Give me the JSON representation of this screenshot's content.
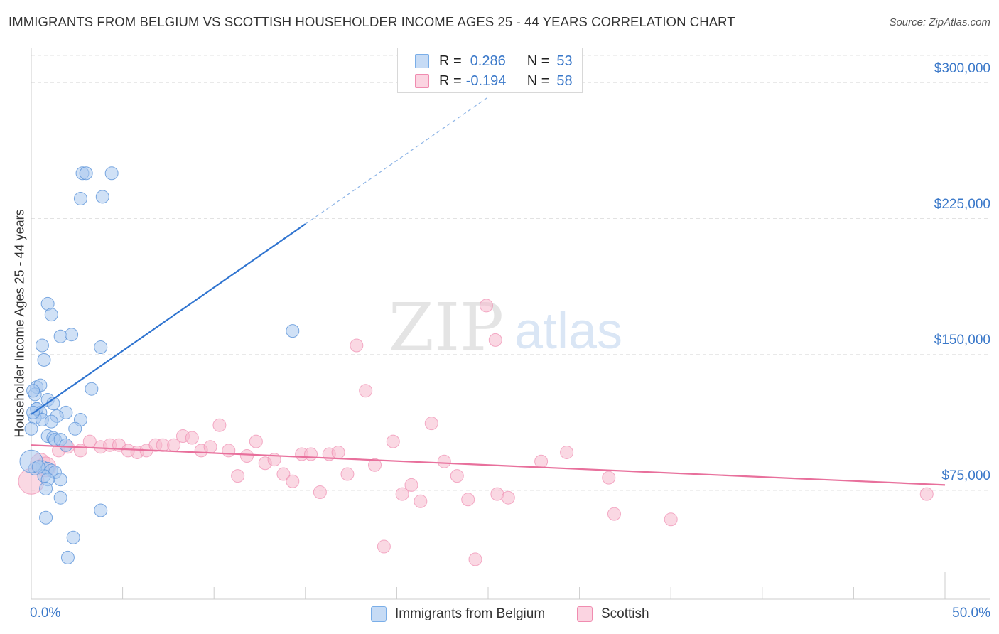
{
  "header": {
    "title": "IMMIGRANTS FROM BELGIUM VS SCOTTISH HOUSEHOLDER INCOME AGES 25 - 44 YEARS CORRELATION CHART",
    "source": "Source: ZipAtlas.com"
  },
  "watermark": {
    "zip": "ZIP",
    "atlas": "atlas"
  },
  "legend": {
    "r_label": "R =",
    "n_label": "N =",
    "rows": [
      {
        "r": "0.286",
        "n": "53",
        "color": "#a9c8ef"
      },
      {
        "r": "-0.194",
        "n": "58",
        "color": "#f5b8cc"
      }
    ]
  },
  "bottom_legend": [
    {
      "label": "Immigrants from Belgium",
      "color": "#a9c8ef"
    },
    {
      "label": "Scottish",
      "color": "#f5b8cc"
    }
  ],
  "chart_data": {
    "type": "scatter",
    "title": "IMMIGRANTS FROM BELGIUM VS SCOTTISH HOUSEHOLDER INCOME AGES 25 - 44 YEARS CORRELATION CHART",
    "xlabel": "",
    "ylabel": "Householder Income Ages 25 - 44 years",
    "xlim": [
      0,
      50
    ],
    "ylim": [
      15000,
      315000
    ],
    "x_tick_labels": [
      "0.0%",
      "50.0%"
    ],
    "y_ticks": [
      75000,
      150000,
      225000,
      300000
    ],
    "y_tick_labels": [
      "$75,000",
      "$150,000",
      "$225,000",
      "$300,000"
    ],
    "grid": "horizontal dashed",
    "legend_position": "top-center",
    "series": [
      {
        "name": "Immigrants from Belgium",
        "color": "#7aaee8",
        "trend": {
          "x0": 0,
          "y0": 117000,
          "x1": 15,
          "y1": 222000,
          "dashed_to_x": 25,
          "dashed_to_y": 292000
        },
        "points": [
          [
            2.8,
            250000
          ],
          [
            3.0,
            250000
          ],
          [
            4.4,
            250000
          ],
          [
            2.7,
            236000
          ],
          [
            3.9,
            237000
          ],
          [
            0.9,
            178000
          ],
          [
            1.1,
            172000
          ],
          [
            1.6,
            160000
          ],
          [
            2.2,
            161000
          ],
          [
            0.6,
            155000
          ],
          [
            3.8,
            154000
          ],
          [
            0.7,
            147000
          ],
          [
            0.3,
            132000
          ],
          [
            0.5,
            133000
          ],
          [
            0.2,
            128000
          ],
          [
            3.3,
            131000
          ],
          [
            0.1,
            130000
          ],
          [
            0.9,
            125000
          ],
          [
            1.2,
            123000
          ],
          [
            0.3,
            120000
          ],
          [
            0.5,
            118000
          ],
          [
            1.9,
            118000
          ],
          [
            0.2,
            115000
          ],
          [
            1.4,
            116000
          ],
          [
            0.6,
            114000
          ],
          [
            1.1,
            113000
          ],
          [
            2.7,
            114000
          ],
          [
            0.0,
            109000
          ],
          [
            2.4,
            109000
          ],
          [
            0.9,
            105000
          ],
          [
            1.2,
            104000
          ],
          [
            1.3,
            103000
          ],
          [
            1.6,
            103000
          ],
          [
            1.9,
            100000
          ],
          [
            0.6,
            88000
          ],
          [
            0.9,
            87000
          ],
          [
            0.2,
            87000
          ],
          [
            1.1,
            86000
          ],
          [
            1.3,
            85000
          ],
          [
            0.7,
            83000
          ],
          [
            0.9,
            81000
          ],
          [
            1.6,
            81000
          ],
          [
            0.8,
            76000
          ],
          [
            1.6,
            71000
          ],
          [
            3.8,
            64000
          ],
          [
            0.8,
            60000
          ],
          [
            2.3,
            49000
          ],
          [
            2.0,
            38000
          ],
          [
            14.3,
            163000
          ],
          [
            0.0,
            91000
          ],
          [
            0.4,
            88000
          ],
          [
            0.3,
            120000
          ],
          [
            0.1,
            118000
          ]
        ]
      },
      {
        "name": "Scottish",
        "color": "#f08cb0",
        "trend": {
          "x0": 0,
          "y0": 100000,
          "x1": 50,
          "y1": 78000
        },
        "points": [
          [
            0.0,
            80000
          ],
          [
            0.5,
            90000
          ],
          [
            0.8,
            88000
          ],
          [
            1.5,
            97000
          ],
          [
            2.0,
            99000
          ],
          [
            2.7,
            97000
          ],
          [
            3.2,
            102000
          ],
          [
            3.8,
            99000
          ],
          [
            4.3,
            100000
          ],
          [
            4.8,
            100000
          ],
          [
            5.3,
            97000
          ],
          [
            5.8,
            96000
          ],
          [
            6.3,
            97000
          ],
          [
            6.8,
            100000
          ],
          [
            7.2,
            100000
          ],
          [
            7.8,
            100000
          ],
          [
            8.3,
            105000
          ],
          [
            8.8,
            104000
          ],
          [
            9.3,
            97000
          ],
          [
            9.8,
            99000
          ],
          [
            10.3,
            111000
          ],
          [
            10.8,
            97000
          ],
          [
            11.3,
            83000
          ],
          [
            11.8,
            94000
          ],
          [
            12.3,
            102000
          ],
          [
            12.8,
            90000
          ],
          [
            13.3,
            92000
          ],
          [
            13.8,
            84000
          ],
          [
            14.3,
            80000
          ],
          [
            14.8,
            95000
          ],
          [
            15.3,
            95000
          ],
          [
            15.8,
            74000
          ],
          [
            16.3,
            95000
          ],
          [
            16.8,
            96000
          ],
          [
            17.3,
            84000
          ],
          [
            17.8,
            155000
          ],
          [
            18.3,
            130000
          ],
          [
            18.8,
            89000
          ],
          [
            19.3,
            44000
          ],
          [
            19.8,
            102000
          ],
          [
            20.3,
            73000
          ],
          [
            20.8,
            78000
          ],
          [
            21.3,
            69000
          ],
          [
            21.9,
            112000
          ],
          [
            22.6,
            91000
          ],
          [
            23.3,
            83000
          ],
          [
            23.9,
            70000
          ],
          [
            24.3,
            37000
          ],
          [
            24.9,
            177000
          ],
          [
            25.4,
            158000
          ],
          [
            25.5,
            73000
          ],
          [
            26.1,
            71000
          ],
          [
            27.9,
            91000
          ],
          [
            29.3,
            96000
          ],
          [
            31.6,
            82000
          ],
          [
            31.9,
            62000
          ],
          [
            35.0,
            59000
          ],
          [
            49.0,
            73000
          ]
        ]
      }
    ]
  }
}
